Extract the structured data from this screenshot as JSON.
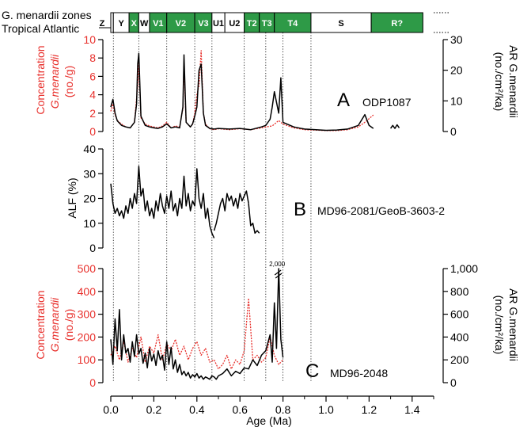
{
  "colors": {
    "concentration": "#e8302c",
    "ar": "#000000",
    "alf": "#000000",
    "zone_green": "#2e9a47",
    "zone_white": "#ffffff"
  },
  "zone_bar": {
    "row_label_1": "G. menardii zones",
    "row_label_2": "Tropical Atlantic",
    "zones": [
      {
        "label": "Z",
        "start": 0.0,
        "end": 0.012,
        "fill": "white"
      },
      {
        "label": "Y",
        "start": 0.012,
        "end": 0.085,
        "fill": "white"
      },
      {
        "label": "X",
        "start": 0.085,
        "end": 0.13,
        "fill": "green"
      },
      {
        "label": "W",
        "start": 0.13,
        "end": 0.18,
        "fill": "white"
      },
      {
        "label": "V1",
        "start": 0.18,
        "end": 0.26,
        "fill": "green"
      },
      {
        "label": "V2",
        "start": 0.26,
        "end": 0.39,
        "fill": "green"
      },
      {
        "label": "V3",
        "start": 0.39,
        "end": 0.47,
        "fill": "green"
      },
      {
        "label": "U1",
        "start": 0.47,
        "end": 0.53,
        "fill": "white"
      },
      {
        "label": "U2",
        "start": 0.53,
        "end": 0.62,
        "fill": "white"
      },
      {
        "label": "T2",
        "start": 0.62,
        "end": 0.69,
        "fill": "green"
      },
      {
        "label": "T3",
        "start": 0.69,
        "end": 0.76,
        "fill": "green"
      },
      {
        "label": "T4",
        "start": 0.76,
        "end": 0.93,
        "fill": "green"
      },
      {
        "label": "S",
        "start": 0.93,
        "end": 1.21,
        "fill": "white"
      },
      {
        "label": "R?",
        "start": 1.21,
        "end": 1.45,
        "fill": "green"
      }
    ]
  },
  "chart_data": [
    {
      "type": "line",
      "panel": "A",
      "panel_letter": "A",
      "core": "ODP1087",
      "xlim": [
        0,
        1.5
      ],
      "left_axis": {
        "label_1": "Concentration",
        "label_2": "G.menardii",
        "label_3": "(no./g)",
        "ylim": [
          0,
          10
        ],
        "ticks": [
          "0",
          "2",
          "4",
          "6",
          "8",
          "10"
        ]
      },
      "right_axis": {
        "label_1": "AR G.menardii",
        "label_2": "(no./cm²/ka)",
        "ylim": [
          0,
          30
        ],
        "ticks": [
          "0",
          "10",
          "20",
          "30"
        ]
      },
      "series": [
        {
          "axis": "left",
          "style": "dotted-red",
          "x": [
            0.0,
            0.01,
            0.02,
            0.03,
            0.05,
            0.07,
            0.09,
            0.11,
            0.125,
            0.13,
            0.14,
            0.16,
            0.18,
            0.2,
            0.22,
            0.24,
            0.26,
            0.28,
            0.3,
            0.32,
            0.335,
            0.34,
            0.35,
            0.37,
            0.38,
            0.39,
            0.4,
            0.41,
            0.42,
            0.43,
            0.44,
            0.46,
            0.48,
            0.5,
            0.55,
            0.6,
            0.65,
            0.7,
            0.72,
            0.75,
            0.78,
            0.8,
            0.85,
            0.9,
            1.0,
            1.05,
            1.1,
            1.15,
            1.18,
            1.2,
            1.22
          ],
          "y": [
            2.2,
            3.0,
            1.8,
            1.2,
            0.8,
            0.5,
            0.4,
            1.0,
            5.0,
            7.6,
            1.5,
            0.8,
            0.6,
            0.5,
            0.4,
            0.6,
            1.0,
            0.4,
            0.6,
            0.5,
            2.5,
            7.0,
            1.0,
            0.5,
            0.8,
            2.0,
            4.0,
            5.0,
            8.8,
            2.0,
            0.8,
            0.3,
            0.2,
            0.3,
            0.2,
            0.3,
            0.2,
            0.4,
            0.5,
            0.6,
            1.2,
            0.8,
            0.4,
            0.2,
            0.1,
            0.1,
            0.2,
            0.5,
            1.0,
            1.4,
            1.8
          ]
        },
        {
          "axis": "right",
          "style": "solid-black",
          "x": [
            0.0,
            0.01,
            0.02,
            0.03,
            0.05,
            0.07,
            0.09,
            0.11,
            0.12,
            0.125,
            0.13,
            0.14,
            0.16,
            0.18,
            0.2,
            0.22,
            0.24,
            0.26,
            0.28,
            0.3,
            0.32,
            0.335,
            0.34,
            0.35,
            0.37,
            0.38,
            0.39,
            0.4,
            0.41,
            0.42,
            0.43,
            0.44,
            0.46,
            0.48,
            0.5,
            0.55,
            0.6,
            0.65,
            0.7,
            0.72,
            0.74,
            0.75,
            0.76,
            0.78,
            0.79,
            0.8,
            0.85,
            0.9,
            1.0,
            1.05,
            1.1,
            1.15,
            1.18,
            1.2,
            1.22
          ],
          "y": [
            8.0,
            10.5,
            6.0,
            3.5,
            2.0,
            1.5,
            1.2,
            3.0,
            9.0,
            22.0,
            25.5,
            5.0,
            2.0,
            1.5,
            1.2,
            1.0,
            1.5,
            2.5,
            1.2,
            1.5,
            1.2,
            8.0,
            25.0,
            3.0,
            1.5,
            2.5,
            5.0,
            8.0,
            20.0,
            22.0,
            6.0,
            2.0,
            1.0,
            0.8,
            1.0,
            0.8,
            1.0,
            0.6,
            1.5,
            2.0,
            4.0,
            8.0,
            13.0,
            6.0,
            17.5,
            3.0,
            1.5,
            0.8,
            0.4,
            0.5,
            0.8,
            2.0,
            5.5,
            2.0,
            1.0
          ]
        },
        {
          "axis": "right",
          "style": "solid-black",
          "x": [
            1.3,
            1.31,
            1.32,
            1.33,
            1.34
          ],
          "y": [
            1.0,
            2.0,
            1.0,
            2.2,
            1.2
          ]
        }
      ]
    },
    {
      "type": "line",
      "panel": "B",
      "panel_letter": "B",
      "core": "MD96-2081/GeoB-3603-2",
      "xlim": [
        0,
        1.5
      ],
      "left_axis": {
        "label_1": "ALF (%)",
        "ylim": [
          0,
          40
        ],
        "ticks": [
          "0",
          "10",
          "20",
          "30",
          "40"
        ]
      },
      "series": [
        {
          "axis": "left",
          "style": "solid-black",
          "x": [
            0.0,
            0.01,
            0.02,
            0.03,
            0.04,
            0.05,
            0.06,
            0.07,
            0.08,
            0.09,
            0.1,
            0.11,
            0.12,
            0.13,
            0.14,
            0.15,
            0.16,
            0.17,
            0.18,
            0.19,
            0.2,
            0.21,
            0.22,
            0.23,
            0.24,
            0.25,
            0.26,
            0.27,
            0.28,
            0.29,
            0.3,
            0.31,
            0.32,
            0.33,
            0.34,
            0.35,
            0.36,
            0.37,
            0.38,
            0.39,
            0.4,
            0.41,
            0.42,
            0.43,
            0.44,
            0.45,
            0.46,
            0.47,
            0.48
          ],
          "y": [
            26,
            18,
            14,
            16,
            13,
            15,
            12,
            17,
            14,
            20,
            16,
            22,
            18,
            33,
            21,
            24,
            15,
            19,
            13,
            16,
            12,
            19,
            15,
            22,
            17,
            14,
            21,
            16,
            23,
            15,
            18,
            13,
            20,
            16,
            29,
            17,
            22,
            15,
            19,
            17,
            32,
            20,
            16,
            22,
            12,
            16,
            9,
            6,
            4
          ]
        },
        {
          "axis": "left",
          "style": "solid-black",
          "x": [
            0.48,
            0.49,
            0.5,
            0.51,
            0.52,
            0.53,
            0.54,
            0.55,
            0.56,
            0.57,
            0.58,
            0.59,
            0.6,
            0.61,
            0.62,
            0.63,
            0.64
          ],
          "y": [
            7,
            10,
            14,
            18,
            20,
            15,
            22,
            19,
            21,
            17,
            20,
            16,
            22,
            19,
            21,
            23,
            18
          ]
        },
        {
          "axis": "left",
          "style": "solid-black",
          "x": [
            0.64,
            0.65,
            0.66,
            0.67,
            0.68,
            0.69
          ],
          "y": [
            18,
            9,
            10,
            6,
            7,
            6
          ]
        }
      ]
    },
    {
      "type": "line",
      "panel": "C",
      "panel_letter": "C",
      "core": "MD96-2048",
      "xlim": [
        0,
        1.5
      ],
      "xlabel": "Age (Ma)",
      "xticks": [
        "0.0",
        "0.2",
        "0.4",
        "0.6",
        "0.8",
        "1.0",
        "1.2",
        "1.4"
      ],
      "left_axis": {
        "label_1": "Concentration",
        "label_2": "G.menardii",
        "label_3": "(no./g)",
        "ylim": [
          0,
          500
        ],
        "ticks": [
          "0",
          "100",
          "200",
          "300",
          "400",
          "500"
        ]
      },
      "right_axis": {
        "label_1": "AR G.menardii",
        "label_2": "(no./cm²/ka)",
        "ylim": [
          0,
          1000
        ],
        "ticks": [
          "0",
          "200",
          "400",
          "600",
          "800",
          "1,000"
        ]
      },
      "annotation": "2,000",
      "series": [
        {
          "axis": "left",
          "style": "dotted-red",
          "x": [
            0.0,
            0.02,
            0.04,
            0.06,
            0.08,
            0.1,
            0.12,
            0.14,
            0.16,
            0.18,
            0.2,
            0.22,
            0.24,
            0.26,
            0.28,
            0.3,
            0.32,
            0.34,
            0.36,
            0.38,
            0.4,
            0.42,
            0.44,
            0.46,
            0.48,
            0.5,
            0.52,
            0.54,
            0.56,
            0.58,
            0.6,
            0.62,
            0.64,
            0.66,
            0.68,
            0.7,
            0.72,
            0.74,
            0.76,
            0.78,
            0.8
          ],
          "y": [
            120,
            160,
            100,
            180,
            90,
            150,
            110,
            200,
            90,
            160,
            130,
            210,
            100,
            170,
            140,
            190,
            120,
            160,
            100,
            150,
            180,
            120,
            150,
            90,
            100,
            60,
            80,
            120,
            60,
            100,
            80,
            140,
            370,
            100,
            120,
            90,
            110,
            200,
            120,
            80,
            100
          ]
        },
        {
          "axis": "right",
          "style": "solid-black",
          "x": [
            0.0,
            0.01,
            0.02,
            0.03,
            0.04,
            0.05,
            0.06,
            0.07,
            0.08,
            0.09,
            0.1,
            0.11,
            0.12,
            0.13,
            0.14,
            0.15,
            0.16,
            0.17,
            0.18,
            0.19,
            0.2,
            0.21,
            0.22,
            0.23,
            0.24,
            0.25,
            0.26,
            0.27,
            0.28,
            0.29,
            0.3,
            0.31,
            0.32,
            0.33,
            0.34,
            0.35,
            0.36,
            0.37,
            0.38,
            0.39,
            0.4,
            0.41,
            0.42,
            0.43,
            0.44,
            0.45,
            0.46,
            0.47,
            0.48,
            0.49,
            0.5,
            0.52,
            0.54,
            0.56,
            0.58,
            0.6,
            0.62,
            0.64,
            0.66,
            0.68,
            0.7,
            0.72,
            0.74,
            0.75,
            0.76,
            0.77,
            0.78,
            0.79,
            0.8
          ],
          "y": [
            380,
            160,
            560,
            280,
            640,
            200,
            420,
            260,
            300,
            180,
            360,
            230,
            420,
            250,
            300,
            170,
            260,
            130,
            300,
            190,
            250,
            150,
            280,
            200,
            240,
            110,
            360,
            160,
            310,
            120,
            200,
            90,
            160,
            70,
            100,
            60,
            90,
            40,
            70,
            50,
            80,
            40,
            60,
            30,
            50,
            40,
            30,
            60,
            50,
            30,
            60,
            80,
            120,
            60,
            100,
            80,
            130,
            120,
            200,
            150,
            240,
            280,
            420,
            180,
            700,
            300,
            1000,
            380,
            220
          ]
        }
      ]
    }
  ]
}
